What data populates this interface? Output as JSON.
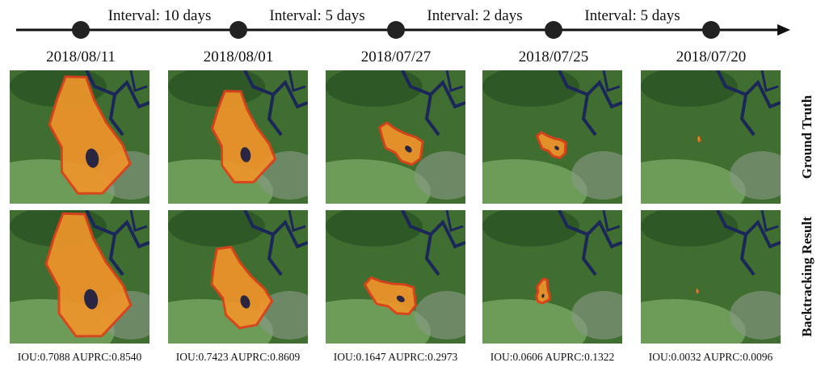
{
  "timeline": {
    "dates": [
      "2018/08/11",
      "2018/08/01",
      "2018/07/27",
      "2018/07/25",
      "2018/07/20"
    ],
    "intervals": [
      "Interval: 10 days",
      "Interval: 5 days",
      "Interval: 2 days",
      "Interval: 5 days"
    ]
  },
  "rows": [
    {
      "label": "Ground Truth"
    },
    {
      "label": "Backtracking Result"
    }
  ],
  "metrics": [
    "IOU:0.7088 AUPRC:0.8540",
    "IOU:0.7423 AUPRC:0.8609",
    "IOU:0.1647 AUPRC:0.2973",
    "IOU:0.0606 AUPRC:0.1322",
    "IOU:0.0032 AUPRC:0.0096"
  ]
}
